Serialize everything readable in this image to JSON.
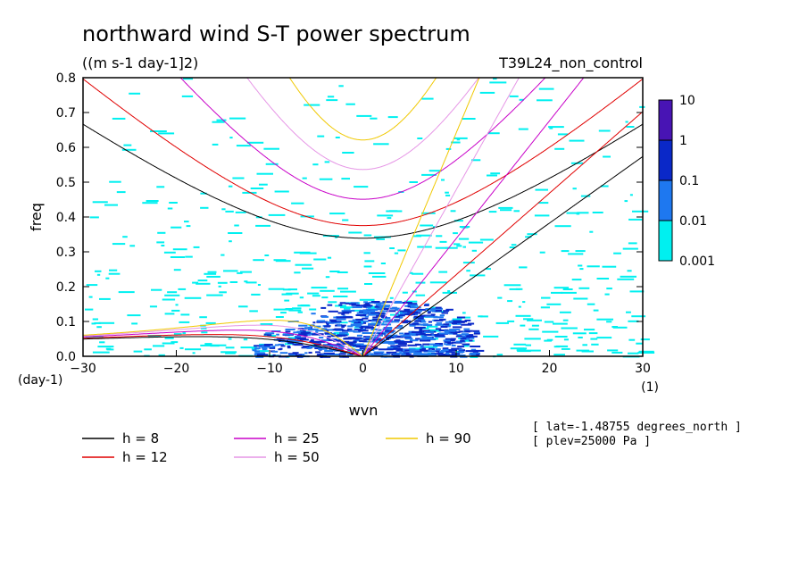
{
  "chart_data": {
    "type": "heatmap",
    "title": "northward wind S-T power spectrum",
    "units": "((m s-1 day-1]2)",
    "run_label": "T39L24_non_control",
    "xlabel": "wvn",
    "ylabel": "freq",
    "x_unit": "(1)",
    "y_unit": "(day-1)",
    "xlim": [
      -30,
      30
    ],
    "ylim": [
      0,
      0.8
    ],
    "x_ticks": [
      -30,
      -20,
      -10,
      0,
      10,
      20,
      30
    ],
    "y_ticks": [
      0.0,
      0.1,
      0.2,
      0.3,
      0.4,
      0.5,
      0.6,
      0.7,
      0.8
    ],
    "colorbar": {
      "levels": [
        "0.001",
        "0.01",
        "0.1",
        "1",
        "10"
      ],
      "colors": [
        "#00f0f0",
        "#1e78f0",
        "#0a28c8",
        "#4814b4"
      ]
    },
    "info": [
      "[ lat=-1.48755 degrees_north ]",
      "[ plev=25000 Pa ]"
    ],
    "dispersion_curves": [
      {
        "label": "h =  8",
        "h": 8,
        "color": "#000000"
      },
      {
        "label": "h = 12",
        "h": 12,
        "color": "#e00000"
      },
      {
        "label": "h = 25",
        "h": 25,
        "color": "#c800c8"
      },
      {
        "label": "h = 50",
        "h": 50,
        "color": "#e696e6"
      },
      {
        "label": "h = 90",
        "h": 90,
        "color": "#f0c800"
      }
    ]
  }
}
